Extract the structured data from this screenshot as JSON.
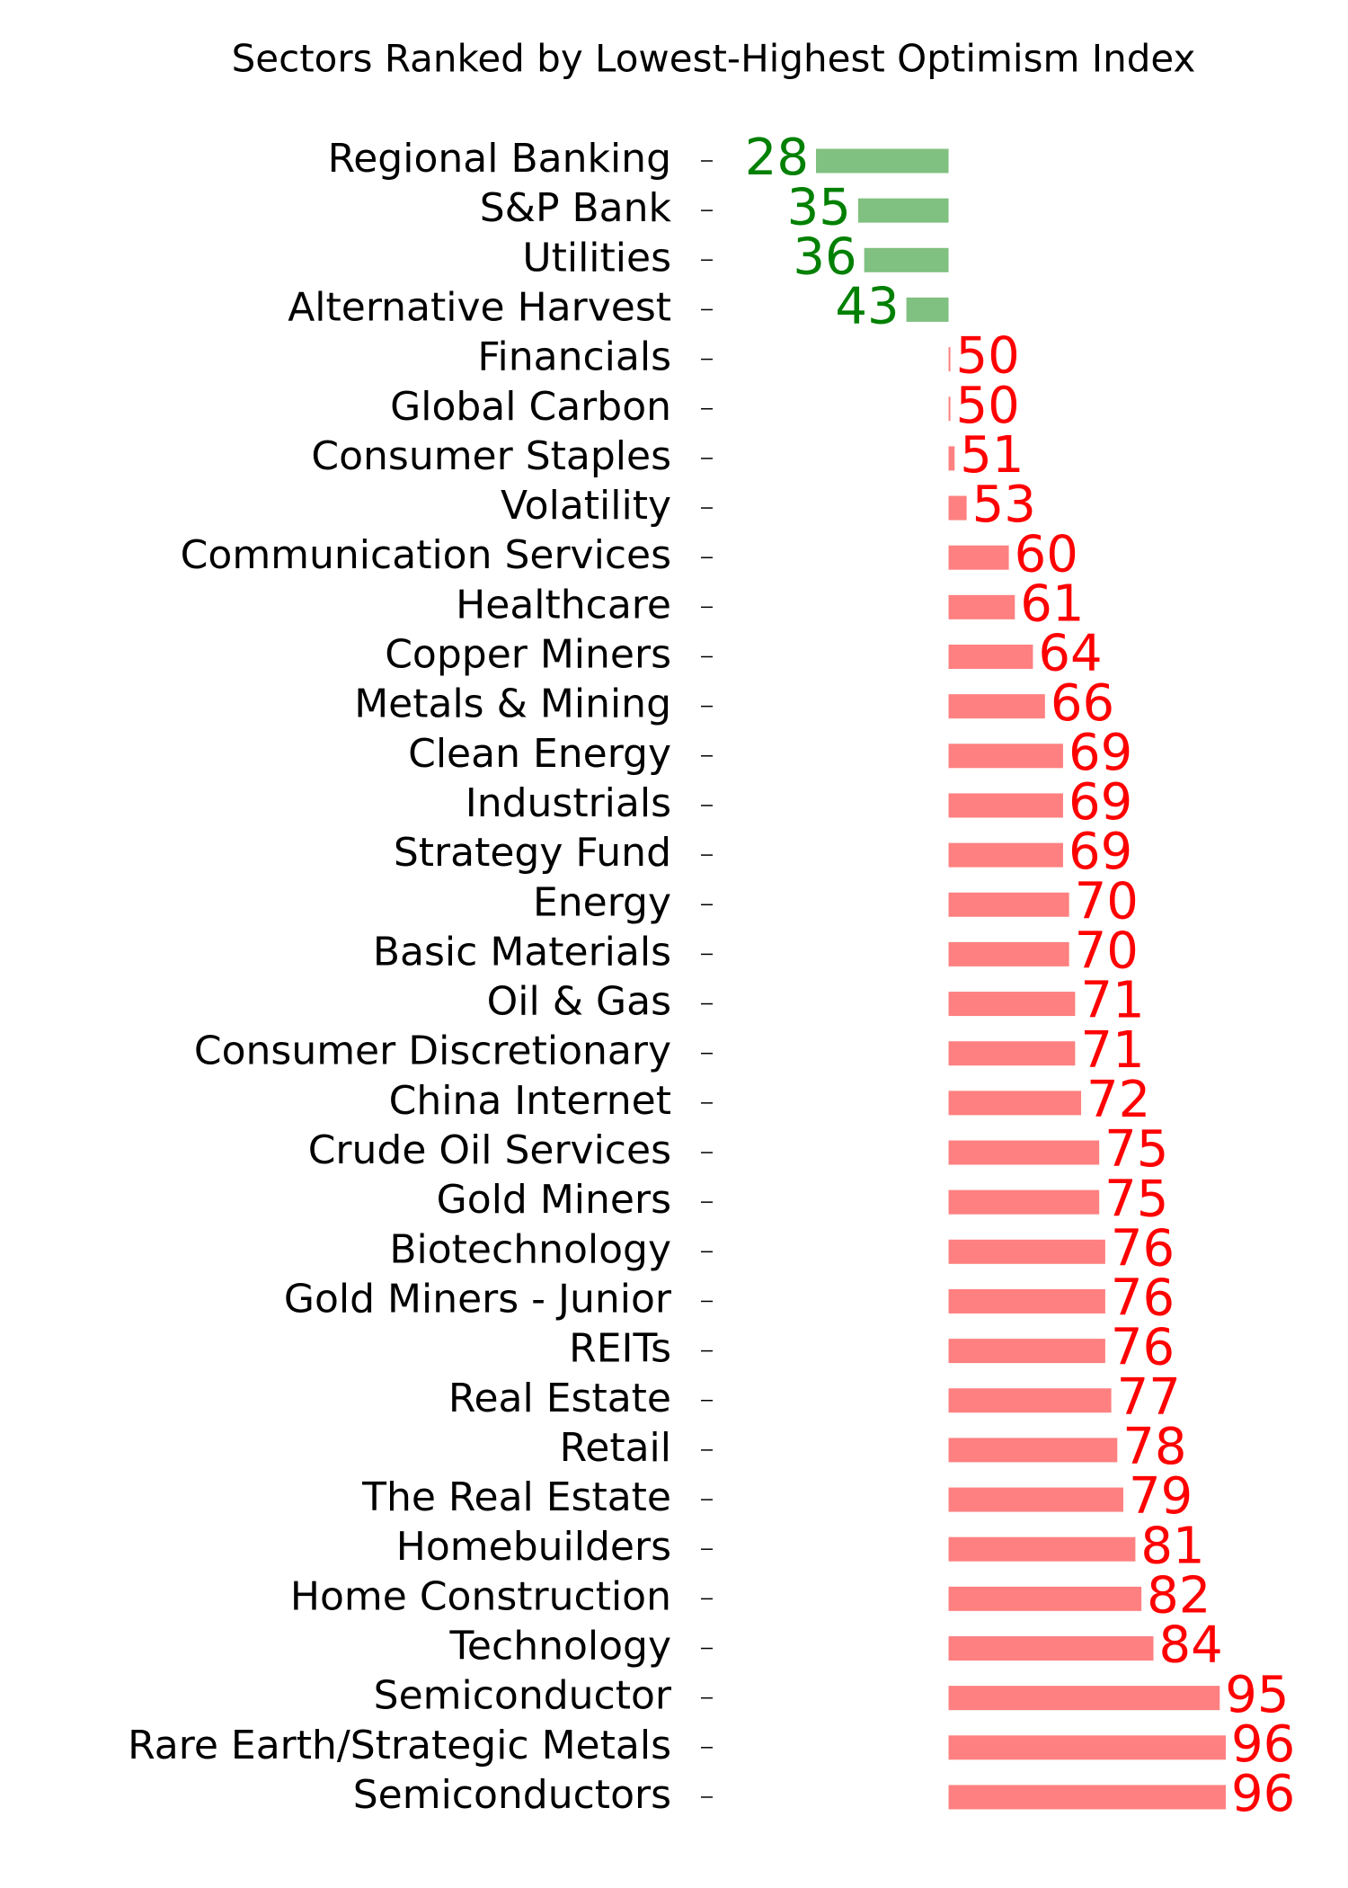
{
  "chart_data": {
    "type": "bar",
    "orientation": "horizontal",
    "title": "Sectors Ranked by Lowest-Highest Optimism Index",
    "categories": [
      "Regional Banking",
      "S&P Bank",
      "Utilities",
      "Alternative Harvest",
      "Financials",
      "Global Carbon",
      "Consumer Staples",
      "Volatility",
      "Communication Services",
      "Healthcare",
      "Copper Miners",
      "Metals & Mining",
      "Clean Energy",
      "Industrials",
      "Strategy Fund",
      "Energy",
      "Basic Materials",
      "Oil & Gas",
      "Consumer Discretionary",
      "China Internet",
      "Crude Oil Services",
      "Gold Miners",
      "Biotechnology",
      "Gold Miners - Junior",
      "REITs",
      "Real Estate",
      "Retail",
      "The Real Estate",
      "Homebuilders",
      "Home Construction",
      "Technology",
      "Semiconductor",
      "Rare Earth/Strategic Metals",
      "Semiconductors"
    ],
    "values": [
      28,
      35,
      36,
      43,
      50,
      50,
      51,
      53,
      60,
      61,
      64,
      66,
      69,
      69,
      69,
      70,
      70,
      71,
      71,
      72,
      75,
      75,
      76,
      76,
      76,
      77,
      78,
      79,
      81,
      82,
      84,
      95,
      96,
      96
    ],
    "baseline": 50,
    "color_below": "#80c080",
    "color_above": "#ff8080",
    "label_color_below": "#008000",
    "label_color_above": "#ff0000"
  }
}
